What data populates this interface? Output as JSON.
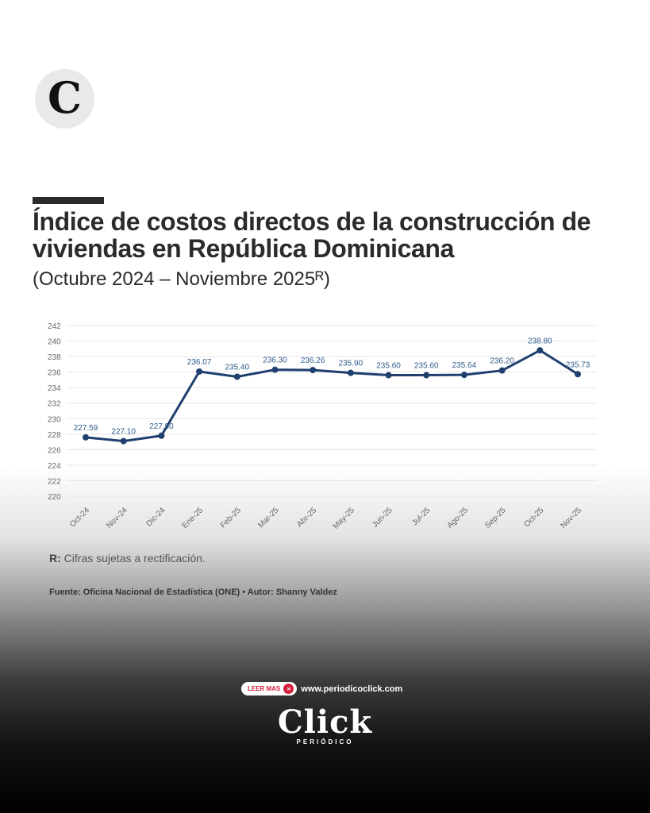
{
  "logo": {
    "letter": "C"
  },
  "title": "Índice de costos directos de la construcción de viviendas en República Dominicana",
  "subtitle": "(Octubre 2024 – Noviembre 2025ᴿ)",
  "chart_data": {
    "type": "line",
    "title": "",
    "xlabel": "",
    "ylabel": "",
    "categories": [
      "Oct-24",
      "Nov-24",
      "Dic-24",
      "Ene-25",
      "Feb-25",
      "Mar-25",
      "Abr-25",
      "May-25",
      "Jun-25",
      "Jul-25",
      "Ago-25",
      "Sep-25",
      "Oct-25",
      "Nov-25"
    ],
    "values": [
      227.59,
      227.1,
      227.8,
      236.07,
      235.4,
      236.3,
      236.26,
      235.9,
      235.6,
      235.6,
      235.64,
      236.2,
      238.8,
      235.73
    ],
    "value_labels": [
      "227.59",
      "227.10",
      "227.80",
      "236.07",
      "235.40",
      "236.30",
      "236.26",
      "235.90",
      "235.60",
      "235.60",
      "235.64",
      "236.20",
      "238.80",
      "235.73"
    ],
    "ylim": [
      220,
      242
    ],
    "yticks": [
      220,
      222,
      224,
      226,
      228,
      230,
      232,
      234,
      236,
      238,
      240,
      242
    ],
    "grid": true,
    "legend": "none",
    "line_color": "#1f3f6e",
    "label_color": "#2e5d8c"
  },
  "note": {
    "label": "R:",
    "text": "Cifras sujetas a rectificación."
  },
  "source": "Fuente: Oficina Nacional de Estadística (ONE) • Autor: Shanny Valdez",
  "cta": {
    "label": "LEER MAS",
    "arrow": "»",
    "url": "www.periodicoclick.com"
  },
  "brand": {
    "name": "Click",
    "sub": "PERIÓDICO"
  }
}
